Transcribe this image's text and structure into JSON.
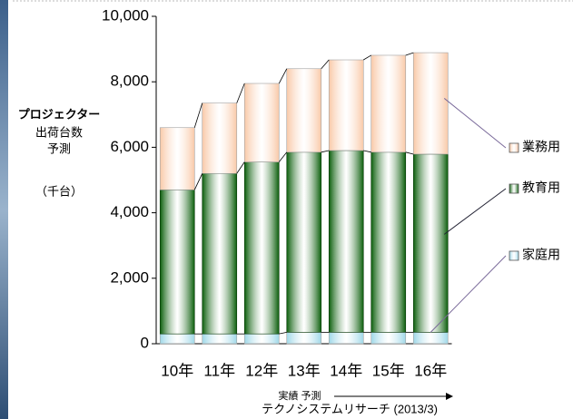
{
  "chart_data": {
    "type": "bar",
    "stacked": true,
    "ylabel": [
      "プロジェクター",
      "出荷台数",
      "予測",
      "（千台）"
    ],
    "categories": [
      "10年",
      "11年",
      "12年",
      "13年",
      "14年",
      "15年",
      "16年"
    ],
    "series": [
      {
        "name": "家庭用",
        "color": "#9fd8e8",
        "values": [
          300,
          300,
          300,
          350,
          350,
          350,
          350
        ]
      },
      {
        "name": "教育用",
        "color": "#0b5e0b",
        "values": [
          4400,
          4900,
          5250,
          5500,
          5550,
          5500,
          5440
        ]
      },
      {
        "name": "業務用",
        "color": "#f9c9a8",
        "values": [
          1900,
          2150,
          2400,
          2550,
          2770,
          2960,
          3100
        ]
      }
    ],
    "ylim": [
      0,
      10000
    ],
    "yticks": [
      0,
      {
        "value": 2000,
        "label": "2,000"
      },
      {
        "value": 4000,
        "label": "4,000"
      },
      {
        "value": 6000,
        "label": "6,000"
      },
      {
        "value": 8000,
        "label": "8,000"
      },
      {
        "value": 10000,
        "label": "10,000"
      }
    ],
    "period_note": "実績 予測",
    "source": "テクノシステムリサーチ (2013/3)"
  }
}
